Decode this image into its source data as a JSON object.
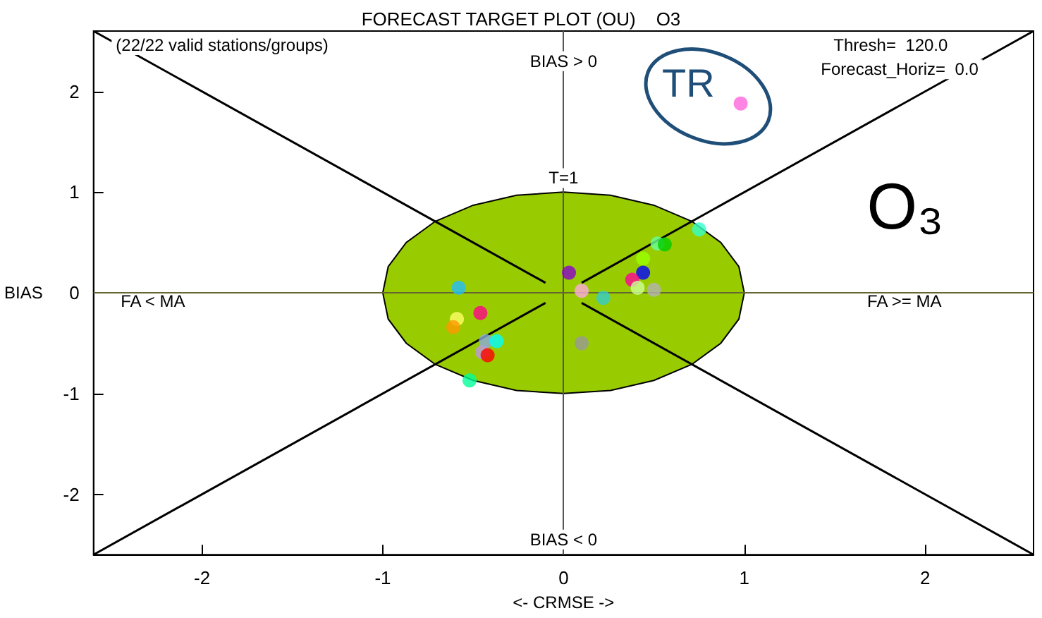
{
  "chart_data": {
    "type": "scatter",
    "title": "FORECAST TARGET PLOT (OU)    O3",
    "xlabel": "<- CRMSE ->",
    "ylabel": "BIAS",
    "xlim": [
      -2.6,
      2.6
    ],
    "ylim": [
      -2.6,
      2.6
    ],
    "xticks": [
      -2,
      -1,
      0,
      1,
      2
    ],
    "yticks": [
      -2,
      -1,
      0,
      1,
      2
    ],
    "marker": "circle",
    "annotations": [
      "(22/22 valid stations/groups)",
      "Thresh=  120.0",
      "Forecast_Horiz=  0.0",
      "BIAS > 0",
      "BIAS < 0",
      "FA < MA",
      "FA >= MA",
      "T=1",
      "TR",
      "O₃"
    ],
    "ref_lines": [
      {
        "axis": "x",
        "value": 0,
        "color": "#555555"
      },
      {
        "axis": "y",
        "value": 0,
        "color": "#666633"
      }
    ],
    "series": [
      {
        "type": "area",
        "marker": "none",
        "color": "#99cc00",
        "x": [
          1,
          0.97,
          0.87,
          0.71,
          0.5,
          0.26,
          0,
          -0.26,
          -0.5,
          -0.71,
          -0.87,
          -0.97,
          -1,
          -0.97,
          -0.87,
          -0.71,
          -0.5,
          -0.26,
          0,
          0.26,
          0.5,
          0.71,
          0.87,
          0.97
        ],
        "values": [
          0,
          0.26,
          0.5,
          0.71,
          0.87,
          0.97,
          1,
          0.97,
          0.87,
          0.71,
          0.5,
          0.26,
          0,
          -0.26,
          -0.5,
          -0.71,
          -0.87,
          -0.97,
          -1,
          -0.97,
          -0.87,
          -0.71,
          -0.5,
          -0.26
        ]
      },
      {
        "type": "line",
        "marker": "none",
        "color": "#000000",
        "x": [
          -2.6,
          -0.1
        ],
        "values": [
          2.6,
          0.1
        ]
      },
      {
        "type": "line",
        "marker": "none",
        "color": "#000000",
        "x": [
          0.1,
          2.6
        ],
        "values": [
          0.1,
          2.6
        ]
      },
      {
        "type": "line",
        "marker": "none",
        "color": "#000000",
        "x": [
          -2.6,
          -0.1
        ],
        "values": [
          -2.6,
          -0.1
        ]
      },
      {
        "type": "line",
        "marker": "none",
        "color": "#000000",
        "x": [
          0.1,
          2.6
        ],
        "values": [
          -0.1,
          -2.6
        ]
      },
      {
        "x": [
          0.75,
          0.52,
          0.56,
          0.44,
          0.44,
          0.38,
          0.41,
          0.5,
          0.03,
          0.1,
          0.22,
          0.1,
          -0.58,
          -0.46,
          -0.59,
          -0.61,
          -0.43,
          -0.37,
          -0.45,
          -0.42,
          -0.52,
          0.98
        ],
        "values": [
          0.63,
          0.49,
          0.48,
          0.34,
          0.2,
          0.13,
          0.05,
          0.03,
          0.2,
          0.02,
          -0.05,
          -0.5,
          0.05,
          -0.2,
          -0.26,
          -0.34,
          -0.48,
          -0.48,
          -0.59,
          -0.62,
          -0.87,
          1.88
        ],
        "colors": [
          "#33ffcc",
          "#66ff99",
          "#00cc00",
          "#99ff00",
          "#0000ff",
          "#ff0099",
          "#ccff99",
          "#b3b3b3",
          "#8800cc",
          "#ffaadd",
          "#33cccc",
          "#999999",
          "#22bbff",
          "#ff0088",
          "#ffff66",
          "#ff9900",
          "#88aadd",
          "#00ffff",
          "#bb99dd",
          "#ff0000",
          "#00ff99",
          "#ff66dd"
        ]
      }
    ]
  }
}
